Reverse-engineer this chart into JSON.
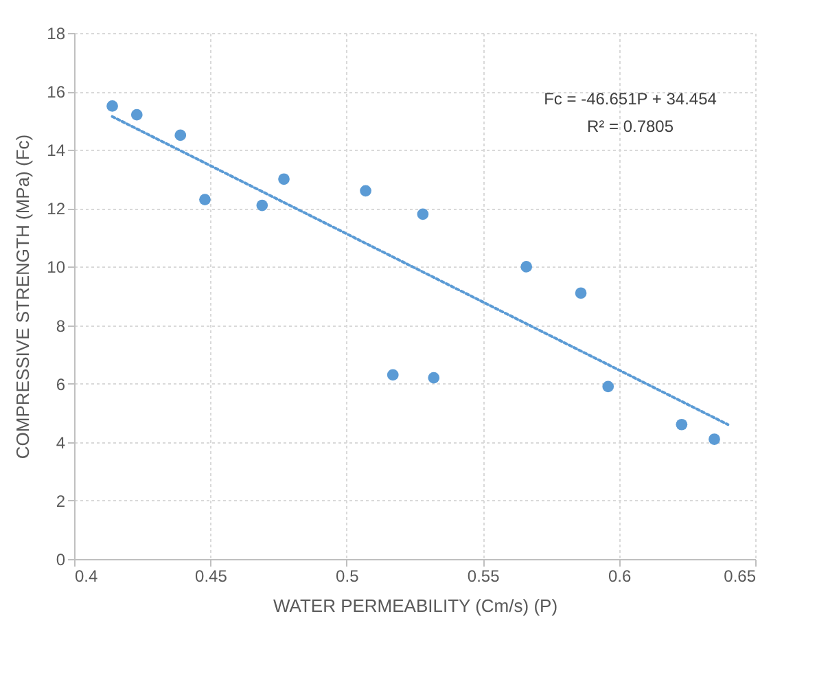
{
  "chart_data": {
    "type": "scatter",
    "xlabel": "WATER PERMEABILITY (Cm/s) (P)",
    "ylabel": "COMPRESSIVE STRENGTH (MPa) (Fc)",
    "xlim": [
      0.4,
      0.65
    ],
    "xticks": [
      0.4,
      0.45,
      0.5,
      0.55,
      0.6,
      0.65
    ],
    "ylim": [
      0,
      18
    ],
    "yticks": [
      0,
      2,
      4,
      6,
      8,
      10,
      12,
      14,
      16,
      18
    ],
    "grid": true,
    "series": [
      {
        "marker": "circle",
        "color": "#5b9bd5",
        "x": [
          0.414,
          0.423,
          0.439,
          0.448,
          0.469,
          0.477,
          0.507,
          0.528,
          0.517,
          0.532,
          0.566,
          0.586,
          0.596,
          0.623,
          0.635
        ],
        "values": [
          15.5,
          15.2,
          14.5,
          12.3,
          12.1,
          13.0,
          12.6,
          11.8,
          6.3,
          6.2,
          10.0,
          9.1,
          5.9,
          4.6,
          4.1
        ]
      },
      {
        "type": "line",
        "color": "#5b9bd5",
        "line_style": "dotted",
        "x": [
          0.414,
          0.64
        ],
        "values": [
          15.14,
          4.6
        ]
      }
    ],
    "annotations": [
      "Fc = -46.651P + 34.454",
      "R² = 0.7805"
    ]
  }
}
